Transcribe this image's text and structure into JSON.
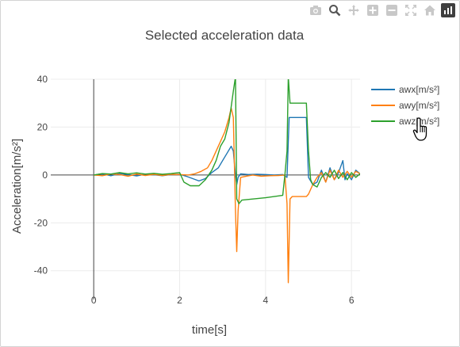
{
  "modebar": {
    "buttons": [
      {
        "name": "camera-icon",
        "color": "#c8c8c8"
      },
      {
        "name": "zoom-icon",
        "color": "#555555"
      },
      {
        "name": "pan-icon",
        "color": "#c8c8c8"
      },
      {
        "name": "zoom-in-icon",
        "color": "#c8c8c8"
      },
      {
        "name": "zoom-out-icon",
        "color": "#c8c8c8"
      },
      {
        "name": "autoscale-icon",
        "color": "#c8c8c8"
      },
      {
        "name": "home-icon",
        "color": "#c8c8c8"
      },
      {
        "name": "plotly-logo-icon",
        "color": "#3f3f3f"
      }
    ]
  },
  "chart_data": {
    "type": "line",
    "title": "Selected acceleration data",
    "xlabel": "time[s]",
    "ylabel": "Acceleration[m/s²]",
    "xlim": [
      -1.0,
      6.2
    ],
    "ylim": [
      -52,
      40
    ],
    "xticks": [
      0,
      2,
      4,
      6
    ],
    "yticks": [
      -40,
      -20,
      0,
      20,
      40
    ],
    "grid": true,
    "legend_position": "right",
    "series": [
      {
        "name": "awx[m/s²]",
        "color": "#1f77b4",
        "points": [
          [
            0,
            0
          ],
          [
            0.2,
            0.5
          ],
          [
            0.4,
            -0.3
          ],
          [
            0.6,
            0.6
          ],
          [
            0.8,
            0.2
          ],
          [
            1.0,
            -0.4
          ],
          [
            1.2,
            0.3
          ],
          [
            1.4,
            0.1
          ],
          [
            1.6,
            -0.3
          ],
          [
            1.8,
            0.2
          ],
          [
            2.0,
            0.3
          ],
          [
            2.15,
            -0.5
          ],
          [
            2.3,
            -1.5
          ],
          [
            2.45,
            -2.5
          ],
          [
            2.6,
            -1.5
          ],
          [
            2.75,
            1.0
          ],
          [
            2.9,
            3.0
          ],
          [
            3.0,
            6.0
          ],
          [
            3.1,
            9.0
          ],
          [
            3.2,
            12.0
          ],
          [
            3.25,
            10.0
          ],
          [
            3.3,
            0.0
          ],
          [
            3.33,
            -4.0
          ],
          [
            3.36,
            -1.0
          ],
          [
            3.42,
            0.5
          ],
          [
            3.6,
            0.2
          ],
          [
            3.8,
            0.3
          ],
          [
            4.0,
            0.2
          ],
          [
            4.2,
            0.0
          ],
          [
            4.4,
            0.2
          ],
          [
            4.5,
            -1.0
          ],
          [
            4.55,
            24.0
          ],
          [
            4.95,
            24.0
          ],
          [
            5.0,
            -1.0
          ],
          [
            5.1,
            -4.0
          ],
          [
            5.2,
            -3.0
          ],
          [
            5.3,
            2.0
          ],
          [
            5.4,
            -3.0
          ],
          [
            5.5,
            3.0
          ],
          [
            5.6,
            -2.0
          ],
          [
            5.7,
            1.0
          ],
          [
            5.8,
            6.0
          ],
          [
            5.85,
            -2.0
          ],
          [
            5.9,
            0.5
          ],
          [
            6.0,
            -2.0
          ],
          [
            6.1,
            2.0
          ],
          [
            6.2,
            0.5
          ]
        ]
      },
      {
        "name": "awy[m/s²]",
        "color": "#ff7f0e",
        "points": [
          [
            0,
            0
          ],
          [
            0.2,
            -0.3
          ],
          [
            0.4,
            0.4
          ],
          [
            0.6,
            0.2
          ],
          [
            0.8,
            -0.5
          ],
          [
            1.0,
            0.4
          ],
          [
            1.2,
            -0.2
          ],
          [
            1.4,
            0.3
          ],
          [
            1.6,
            -0.2
          ],
          [
            1.8,
            0.3
          ],
          [
            2.0,
            0.2
          ],
          [
            2.2,
            0.0
          ],
          [
            2.35,
            0.5
          ],
          [
            2.5,
            1.5
          ],
          [
            2.65,
            3.0
          ],
          [
            2.75,
            6.0
          ],
          [
            2.85,
            10.0
          ],
          [
            2.95,
            14.0
          ],
          [
            3.05,
            18.0
          ],
          [
            3.15,
            24.0
          ],
          [
            3.2,
            28.0
          ],
          [
            3.25,
            24.0
          ],
          [
            3.3,
            -15.0
          ],
          [
            3.33,
            -32.0
          ],
          [
            3.36,
            -15.0
          ],
          [
            3.42,
            -1.0
          ],
          [
            3.55,
            -0.5
          ],
          [
            3.7,
            0.0
          ],
          [
            3.9,
            -0.5
          ],
          [
            4.1,
            -0.3
          ],
          [
            4.3,
            -0.2
          ],
          [
            4.45,
            0.0
          ],
          [
            4.5,
            -12.0
          ],
          [
            4.53,
            -45.0
          ],
          [
            4.57,
            -10.0
          ],
          [
            4.62,
            -9.0
          ],
          [
            4.95,
            -9.0
          ],
          [
            5.0,
            -8.0
          ],
          [
            5.1,
            -4.0
          ],
          [
            5.2,
            -1.0
          ],
          [
            5.3,
            1.0
          ],
          [
            5.4,
            -3.0
          ],
          [
            5.5,
            2.0
          ],
          [
            5.6,
            -2.0
          ],
          [
            5.7,
            2.0
          ],
          [
            5.8,
            -1.0
          ],
          [
            5.9,
            1.5
          ],
          [
            6.0,
            -1.0
          ],
          [
            6.1,
            1.5
          ],
          [
            6.2,
            0.5
          ]
        ]
      },
      {
        "name": "awz[m/s²]",
        "color": "#2ca02c",
        "points": [
          [
            0,
            0
          ],
          [
            0.2,
            0.6
          ],
          [
            0.4,
            0.4
          ],
          [
            0.6,
            1.0
          ],
          [
            0.8,
            0.5
          ],
          [
            1.0,
            0.9
          ],
          [
            1.2,
            0.4
          ],
          [
            1.4,
            0.7
          ],
          [
            1.6,
            0.3
          ],
          [
            1.8,
            0.6
          ],
          [
            2.0,
            1.0
          ],
          [
            2.1,
            -3.0
          ],
          [
            2.25,
            -4.5
          ],
          [
            2.45,
            -4.5
          ],
          [
            2.6,
            -2.0
          ],
          [
            2.75,
            2.0
          ],
          [
            2.85,
            6.0
          ],
          [
            2.95,
            12.0
          ],
          [
            3.05,
            15.0
          ],
          [
            3.15,
            22.0
          ],
          [
            3.25,
            35.0
          ],
          [
            3.3,
            41.0
          ],
          [
            3.33,
            -10.0
          ],
          [
            3.38,
            -12.0
          ],
          [
            3.45,
            -10.5
          ],
          [
            4.0,
            -9.5
          ],
          [
            4.4,
            -8.5
          ],
          [
            4.45,
            0.0
          ],
          [
            4.5,
            10.0
          ],
          [
            4.53,
            41.0
          ],
          [
            4.57,
            30.0
          ],
          [
            4.95,
            30.0
          ],
          [
            5.0,
            10.0
          ],
          [
            5.05,
            -2.0
          ],
          [
            5.1,
            -4.0
          ],
          [
            5.2,
            -5.0
          ],
          [
            5.3,
            -1.0
          ],
          [
            5.4,
            1.0
          ],
          [
            5.5,
            -1.0
          ],
          [
            5.6,
            2.0
          ],
          [
            5.7,
            -1.5
          ],
          [
            5.8,
            1.0
          ],
          [
            5.9,
            -2.0
          ],
          [
            6.0,
            1.0
          ],
          [
            6.1,
            -1.0
          ],
          [
            6.2,
            0.5
          ]
        ]
      }
    ]
  }
}
